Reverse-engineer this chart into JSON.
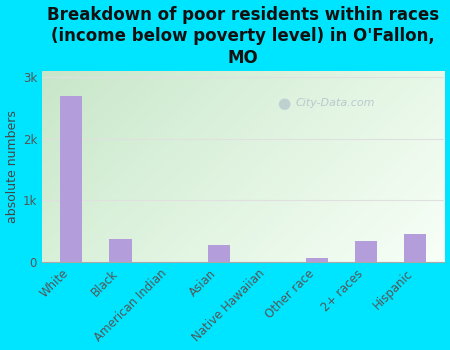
{
  "title": "Breakdown of poor residents within races\n(income below poverty level) in O'Fallon,\nMO",
  "ylabel": "absolute numbers",
  "categories": [
    "White",
    "Black",
    "American Indian",
    "Asian",
    "Native Hawaiian",
    "Other race",
    "2+ races",
    "Hispanic"
  ],
  "values": [
    2700,
    370,
    0,
    280,
    0,
    60,
    350,
    450
  ],
  "bar_color": "#b39ddb",
  "background_color": "#00e5ff",
  "plot_bg_topleft": "#c8e6c9",
  "plot_bg_bottomright": "#f8fff8",
  "grid_color": "#e0e0e0",
  "yticks": [
    0,
    1000,
    2000,
    3000
  ],
  "ytick_labels": [
    "0",
    "1k",
    "2k",
    "3k"
  ],
  "ylim": [
    0,
    3100
  ],
  "title_fontsize": 12,
  "label_fontsize": 8.5,
  "watermark_text": "City-Data.com",
  "watermark_color": "#aabbc8",
  "bar_width": 0.45
}
